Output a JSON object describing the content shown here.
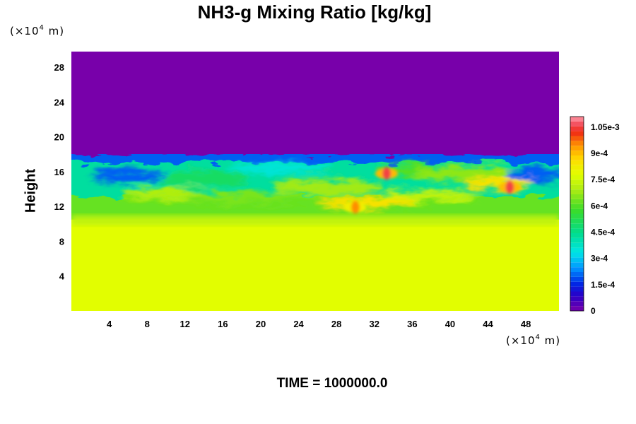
{
  "chart_data": {
    "type": "heatmap",
    "title": "NH3-g Mixing Ratio [kg/kg]",
    "xlabel": "",
    "ylabel": "Height",
    "x_unit": "(×10",
    "y_unit": "(×10",
    "unit_exp": "4",
    "unit_tail": " m)",
    "xlim": [
      0,
      51.5
    ],
    "ylim": [
      0,
      29.8
    ],
    "x_ticks": [
      "4",
      "8",
      "12",
      "16",
      "20",
      "24",
      "28",
      "32",
      "36",
      "40",
      "44",
      "48"
    ],
    "y_ticks": [
      "4",
      "8",
      "12",
      "16",
      "20",
      "24",
      "28"
    ],
    "colorbar": {
      "min": 0,
      "max": 0.00111,
      "tick_values": [
        0,
        0.00015,
        0.0003,
        0.00045,
        0.0006,
        0.00075,
        0.0009,
        0.00105
      ],
      "tick_labels": [
        "0",
        "1.5e-4",
        "3e-4",
        "4.5e-4",
        "6e-4",
        "7.5e-4",
        "9e-4",
        "1.05e-3"
      ]
    },
    "regions": {
      "upper_value": 0.0,
      "lower_value": 0.00078,
      "lower_top_height": 10.5,
      "mixing_layer_top": 18.0,
      "mixing_layer_bottom": 12.0
    },
    "maxima": [
      {
        "x": 33.3,
        "y": 15.8,
        "value": 0.00105
      },
      {
        "x": 46.3,
        "y": 14.2,
        "value": 0.00105
      },
      {
        "x": 30.0,
        "y": 11.9,
        "value": 0.00095
      }
    ]
  },
  "time_label": "TIME = 1000000.0"
}
